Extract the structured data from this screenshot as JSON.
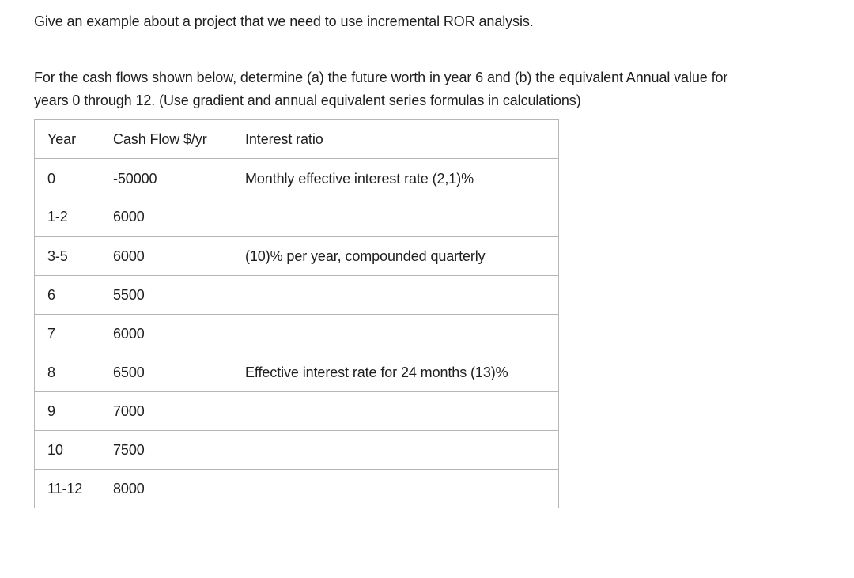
{
  "page": {
    "background_color": "#ffffff",
    "text_color": "#1f1f1f",
    "table_border_color": "#b6b6b6"
  },
  "question1": "Give an example about a project that we need to use incremental ROR analysis.",
  "question2": {
    "line1": "For the cash flows shown below, determine (a) the future worth in year 6 and (b) the equivalent Annual value for",
    "line2": "years 0 through 12. (Use gradient and annual equivalent series formulas in calculations)"
  },
  "table": {
    "headers": [
      "Year",
      "Cash Flow $/yr",
      "Interest ratio"
    ],
    "rows": [
      {
        "year": "0",
        "cash_flow": "-50000",
        "interest": "Monthly effective interest rate (2,1)%",
        "year2": "1-2",
        "cash_flow2": "6000"
      },
      {
        "year": "3-5",
        "cash_flow": "6000",
        "interest": "(10)% per year, compounded quarterly"
      },
      {
        "year": "6",
        "cash_flow": "5500",
        "interest": ""
      },
      {
        "year": "7",
        "cash_flow": "6000",
        "interest": ""
      },
      {
        "year": "8",
        "cash_flow": "6500",
        "interest": "Effective interest rate for 24 months (13)%"
      },
      {
        "year": "9",
        "cash_flow": "7000",
        "interest": ""
      },
      {
        "year": "10",
        "cash_flow": "7500",
        "interest": ""
      },
      {
        "year": "11-12",
        "cash_flow": "8000",
        "interest": ""
      }
    ]
  }
}
